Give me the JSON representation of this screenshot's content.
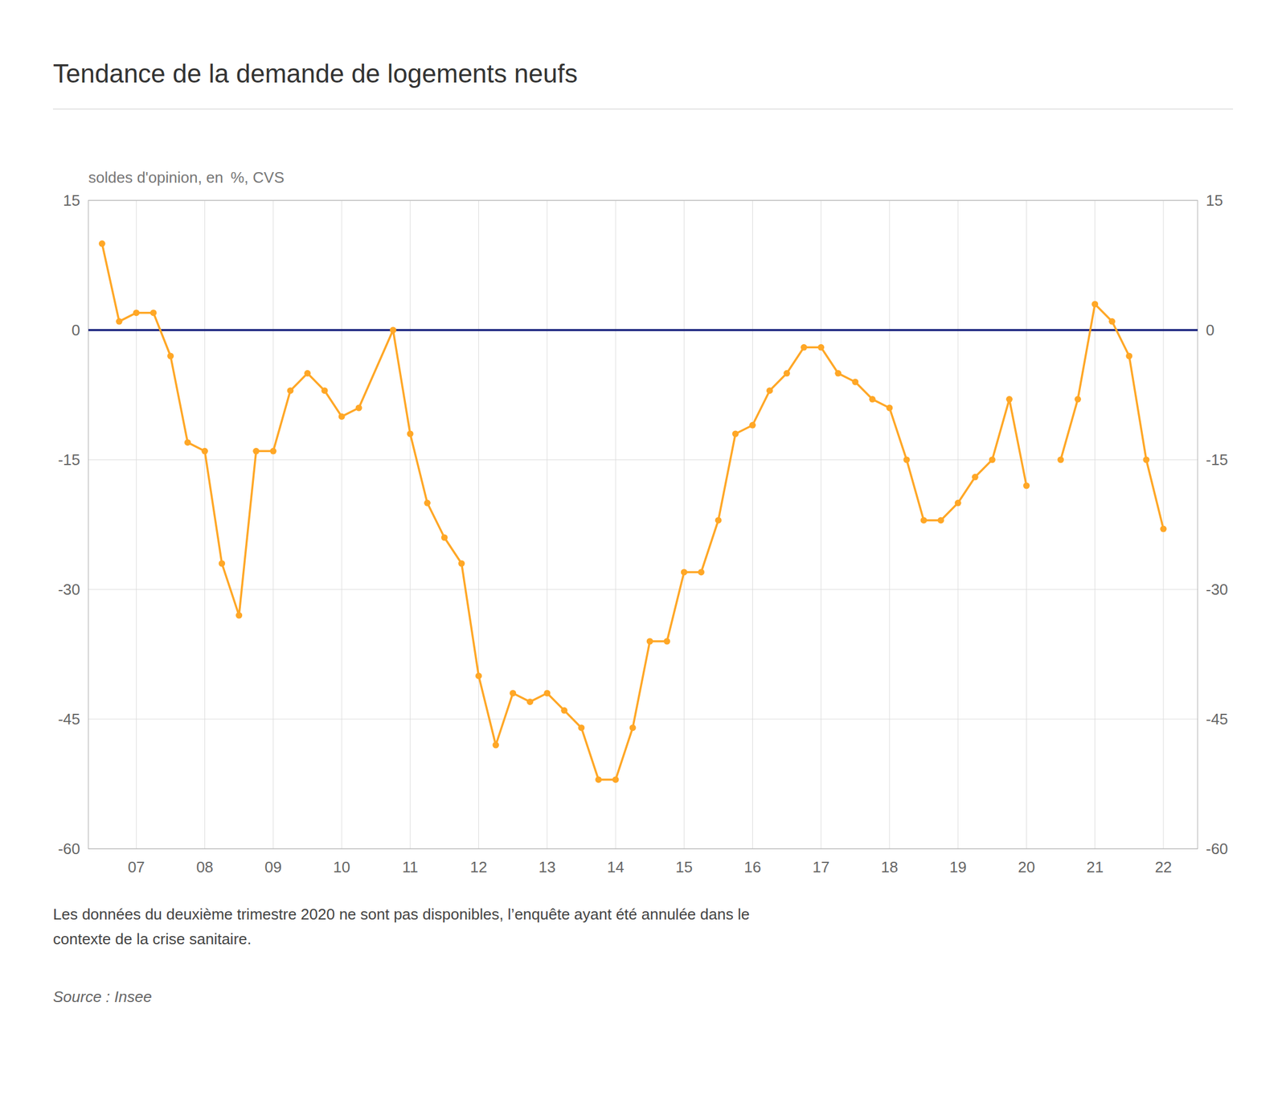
{
  "chart_data": {
    "type": "line",
    "title": "Tendance de la demande de logements neufs",
    "y_label": "soldes d'opinion, en  %, CVS",
    "footnote": "Les données du deuxième trimestre 2020 ne sont pas disponibles, l’enquête ayant été annulée dans le\ncontexte de la crise sanitaire.",
    "source": "Source : Insee",
    "x": [
      2006.5,
      2006.75,
      2007.0,
      2007.25,
      2007.5,
      2007.75,
      2008.0,
      2008.25,
      2008.5,
      2008.75,
      2009.0,
      2009.25,
      2009.5,
      2009.75,
      2010.0,
      2010.25,
      2010.75,
      2011.0,
      2011.25,
      2011.5,
      2011.75,
      2012.0,
      2012.25,
      2012.5,
      2012.75,
      2013.0,
      2013.25,
      2013.5,
      2013.75,
      2014.0,
      2014.25,
      2014.5,
      2014.75,
      2015.0,
      2015.25,
      2015.5,
      2015.75,
      2016.0,
      2016.25,
      2016.5,
      2016.75,
      2017.0,
      2017.25,
      2017.5,
      2017.75,
      2018.0,
      2018.25,
      2018.5,
      2018.75,
      2019.0,
      2019.25,
      2019.5,
      2019.75,
      2020.0,
      2020.25,
      2020.5,
      2020.75,
      2021.0,
      2021.25,
      2021.5,
      2021.75,
      2022.0
    ],
    "series": [
      {
        "color": "#FFA726",
        "marker": "circle",
        "values": [
          10,
          1,
          2,
          2,
          -3,
          -13,
          -14,
          -27,
          -33,
          -14,
          -14,
          -7,
          -5,
          -7,
          -10,
          -9,
          0,
          -12,
          -20,
          -24,
          -27,
          -40,
          -48,
          -42,
          -43,
          -42,
          -44,
          -46,
          -52,
          -52,
          -46,
          -36,
          -36,
          -28,
          -28,
          -22,
          -12,
          -11,
          -7,
          -5,
          -2,
          -2,
          -5,
          -6,
          -8,
          -9,
          -15,
          -22,
          -22,
          -20,
          -17,
          -15,
          -8,
          -18,
          null,
          -15,
          -8,
          3,
          1,
          -3,
          -15,
          -23
        ]
      }
    ],
    "xlim": [
      2006.3,
      2022.5
    ],
    "xticks": [
      {
        "value": 2007,
        "label": "07"
      },
      {
        "value": 2008,
        "label": "08"
      },
      {
        "value": 2009,
        "label": "09"
      },
      {
        "value": 2010,
        "label": "10"
      },
      {
        "value": 2011,
        "label": "11"
      },
      {
        "value": 2012,
        "label": "12"
      },
      {
        "value": 2013,
        "label": "13"
      },
      {
        "value": 2014,
        "label": "14"
      },
      {
        "value": 2015,
        "label": "15"
      },
      {
        "value": 2016,
        "label": "16"
      },
      {
        "value": 2017,
        "label": "17"
      },
      {
        "value": 2018,
        "label": "18"
      },
      {
        "value": 2019,
        "label": "19"
      },
      {
        "value": 2020,
        "label": "20"
      },
      {
        "value": 2021,
        "label": "21"
      },
      {
        "value": 2022,
        "label": "22"
      }
    ],
    "ylim": [
      -60,
      15
    ],
    "yticks": [
      -60,
      -45,
      -30,
      -15,
      0,
      15
    ],
    "grid": true
  }
}
